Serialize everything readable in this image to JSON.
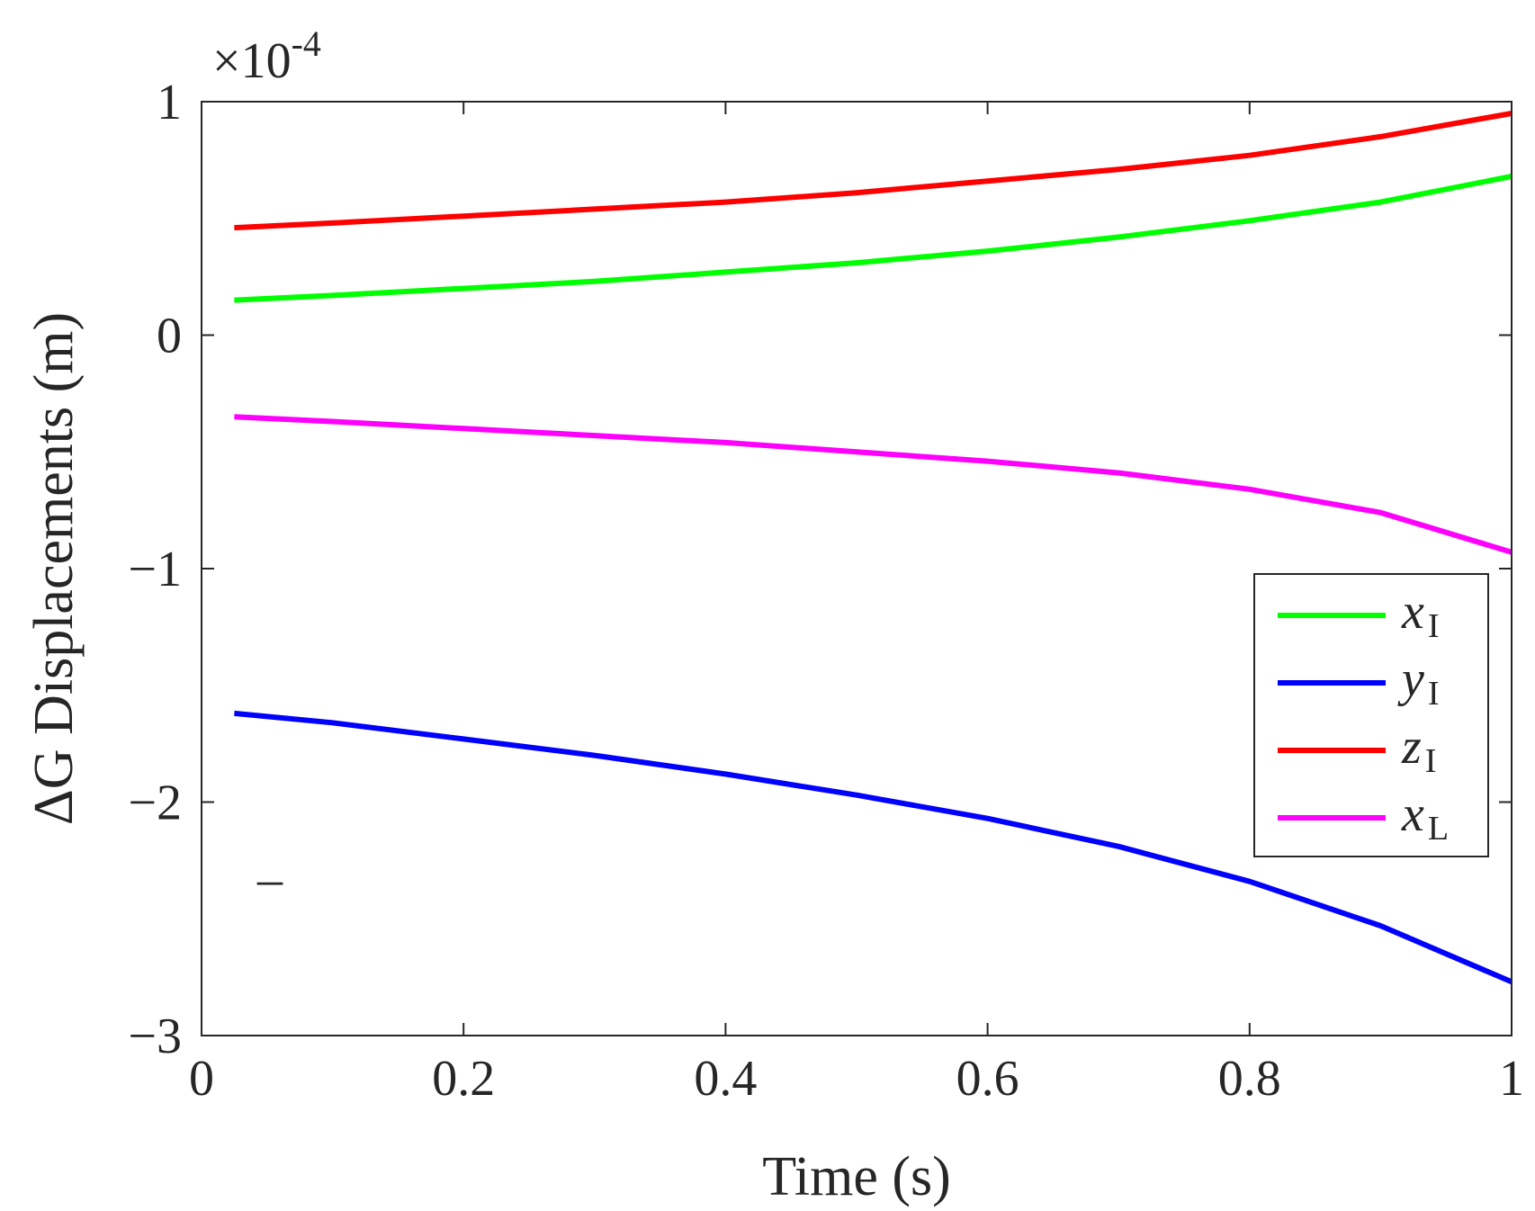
{
  "chart_data": {
    "type": "line",
    "xlabel": "Time (s)",
    "ylabel": "ΔG Displacements (m)",
    "exponent_label": "×10",
    "exponent_power": "-4",
    "xlim": [
      0,
      1
    ],
    "ylim": [
      -3,
      1
    ],
    "xticks": [
      0,
      0.2,
      0.4,
      0.6,
      0.8,
      1
    ],
    "xtick_labels": [
      "0",
      "0.2",
      "0.4",
      "0.6",
      "0.8",
      "1"
    ],
    "yticks": [
      1,
      0,
      -1,
      -2,
      -3
    ],
    "ytick_labels": [
      "1",
      "0",
      "−1",
      "−2",
      "−3"
    ],
    "stray_mark": "–",
    "legend_position": "right",
    "x": [
      0.025,
      0.1,
      0.2,
      0.3,
      0.4,
      0.5,
      0.6,
      0.7,
      0.8,
      0.9,
      1.0
    ],
    "series": [
      {
        "name": "x_I",
        "label_main": "x",
        "label_sub": "I",
        "color": "#00ff00",
        "values": [
          0.15,
          0.17,
          0.2,
          0.23,
          0.27,
          0.31,
          0.36,
          0.42,
          0.49,
          0.57,
          0.68
        ]
      },
      {
        "name": "y_I",
        "label_main": "y",
        "label_sub": "I",
        "color": "#0000ff",
        "values": [
          -1.62,
          -1.66,
          -1.73,
          -1.8,
          -1.88,
          -1.97,
          -2.07,
          -2.19,
          -2.34,
          -2.53,
          -2.77
        ]
      },
      {
        "name": "z_I",
        "label_main": "z",
        "label_sub": "I",
        "color": "#ff0000",
        "values": [
          0.46,
          0.48,
          0.51,
          0.54,
          0.57,
          0.61,
          0.66,
          0.71,
          0.77,
          0.85,
          0.95
        ]
      },
      {
        "name": "x_L",
        "label_main": "x",
        "label_sub": "L",
        "color": "#ff00ff",
        "values": [
          -0.35,
          -0.37,
          -0.4,
          -0.43,
          -0.46,
          -0.5,
          -0.54,
          -0.59,
          -0.66,
          -0.76,
          -0.93
        ]
      }
    ]
  }
}
